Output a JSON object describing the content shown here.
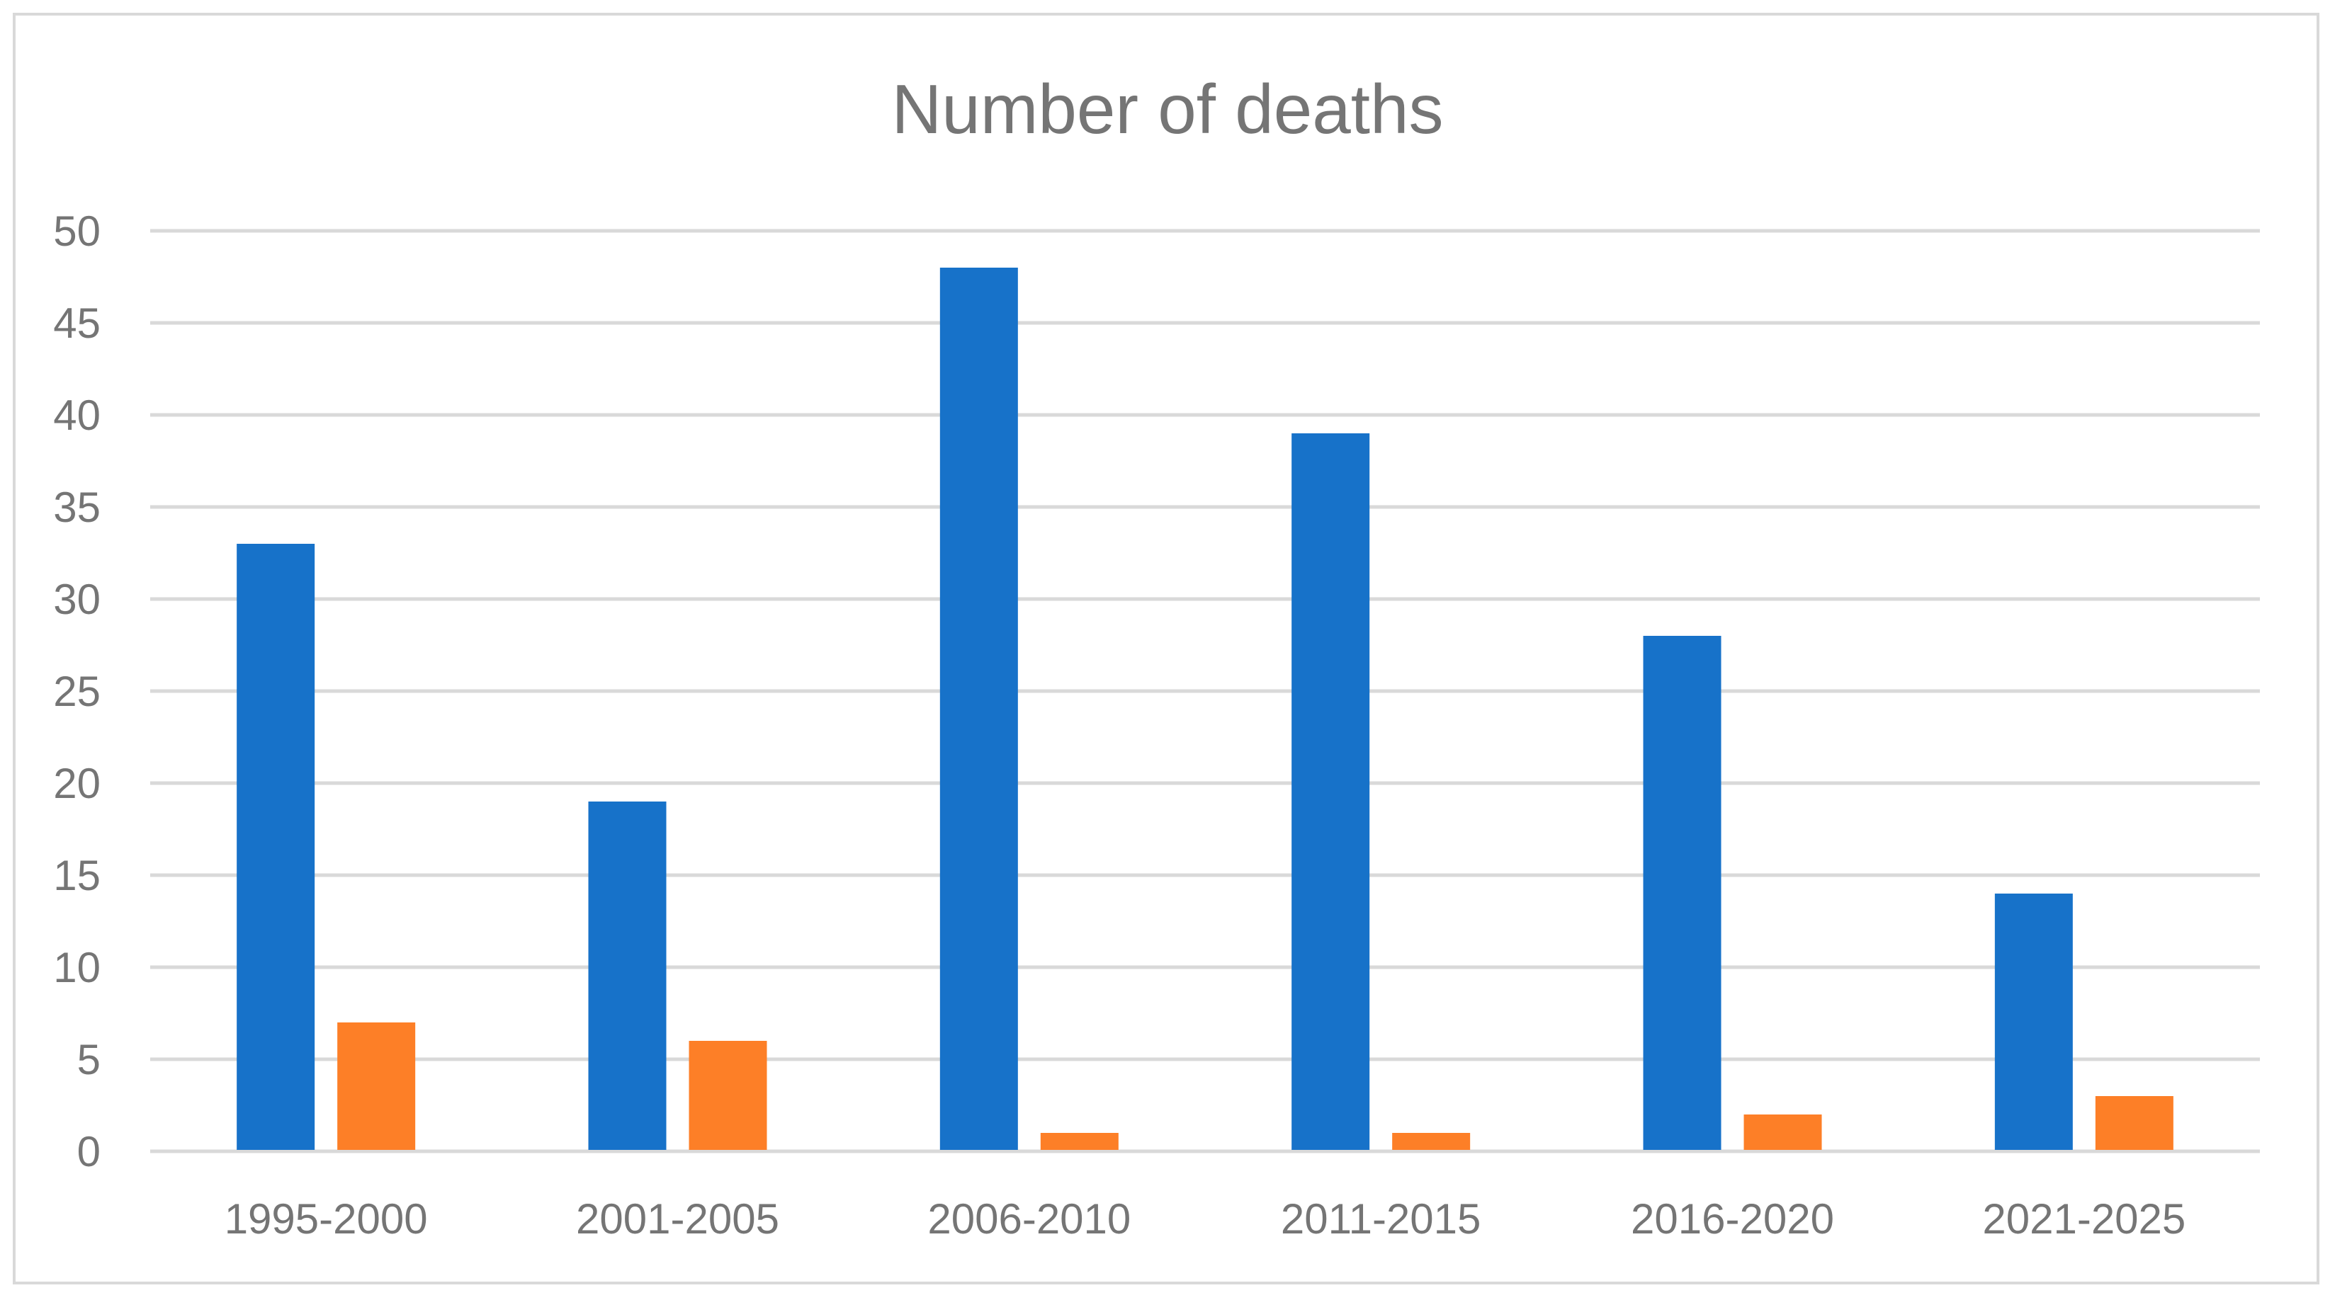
{
  "chart_data": {
    "type": "bar",
    "title": "Number of deaths",
    "xlabel": "",
    "ylabel": "",
    "categories": [
      "1995-2000",
      "2001-2005",
      "2006-2010",
      "2011-2015",
      "2016-2020",
      "2021-2025"
    ],
    "series": [
      {
        "color": "#1772c9",
        "values": [
          33,
          19,
          48,
          39,
          28,
          14
        ]
      },
      {
        "color": "#fd7f27",
        "values": [
          7,
          6,
          1,
          1,
          2,
          3
        ]
      }
    ],
    "ylim": [
      0,
      50
    ],
    "yticks": [
      0,
      5,
      10,
      15,
      20,
      25,
      30,
      35,
      40,
      45,
      50
    ],
    "grid": true,
    "legend": "none"
  }
}
